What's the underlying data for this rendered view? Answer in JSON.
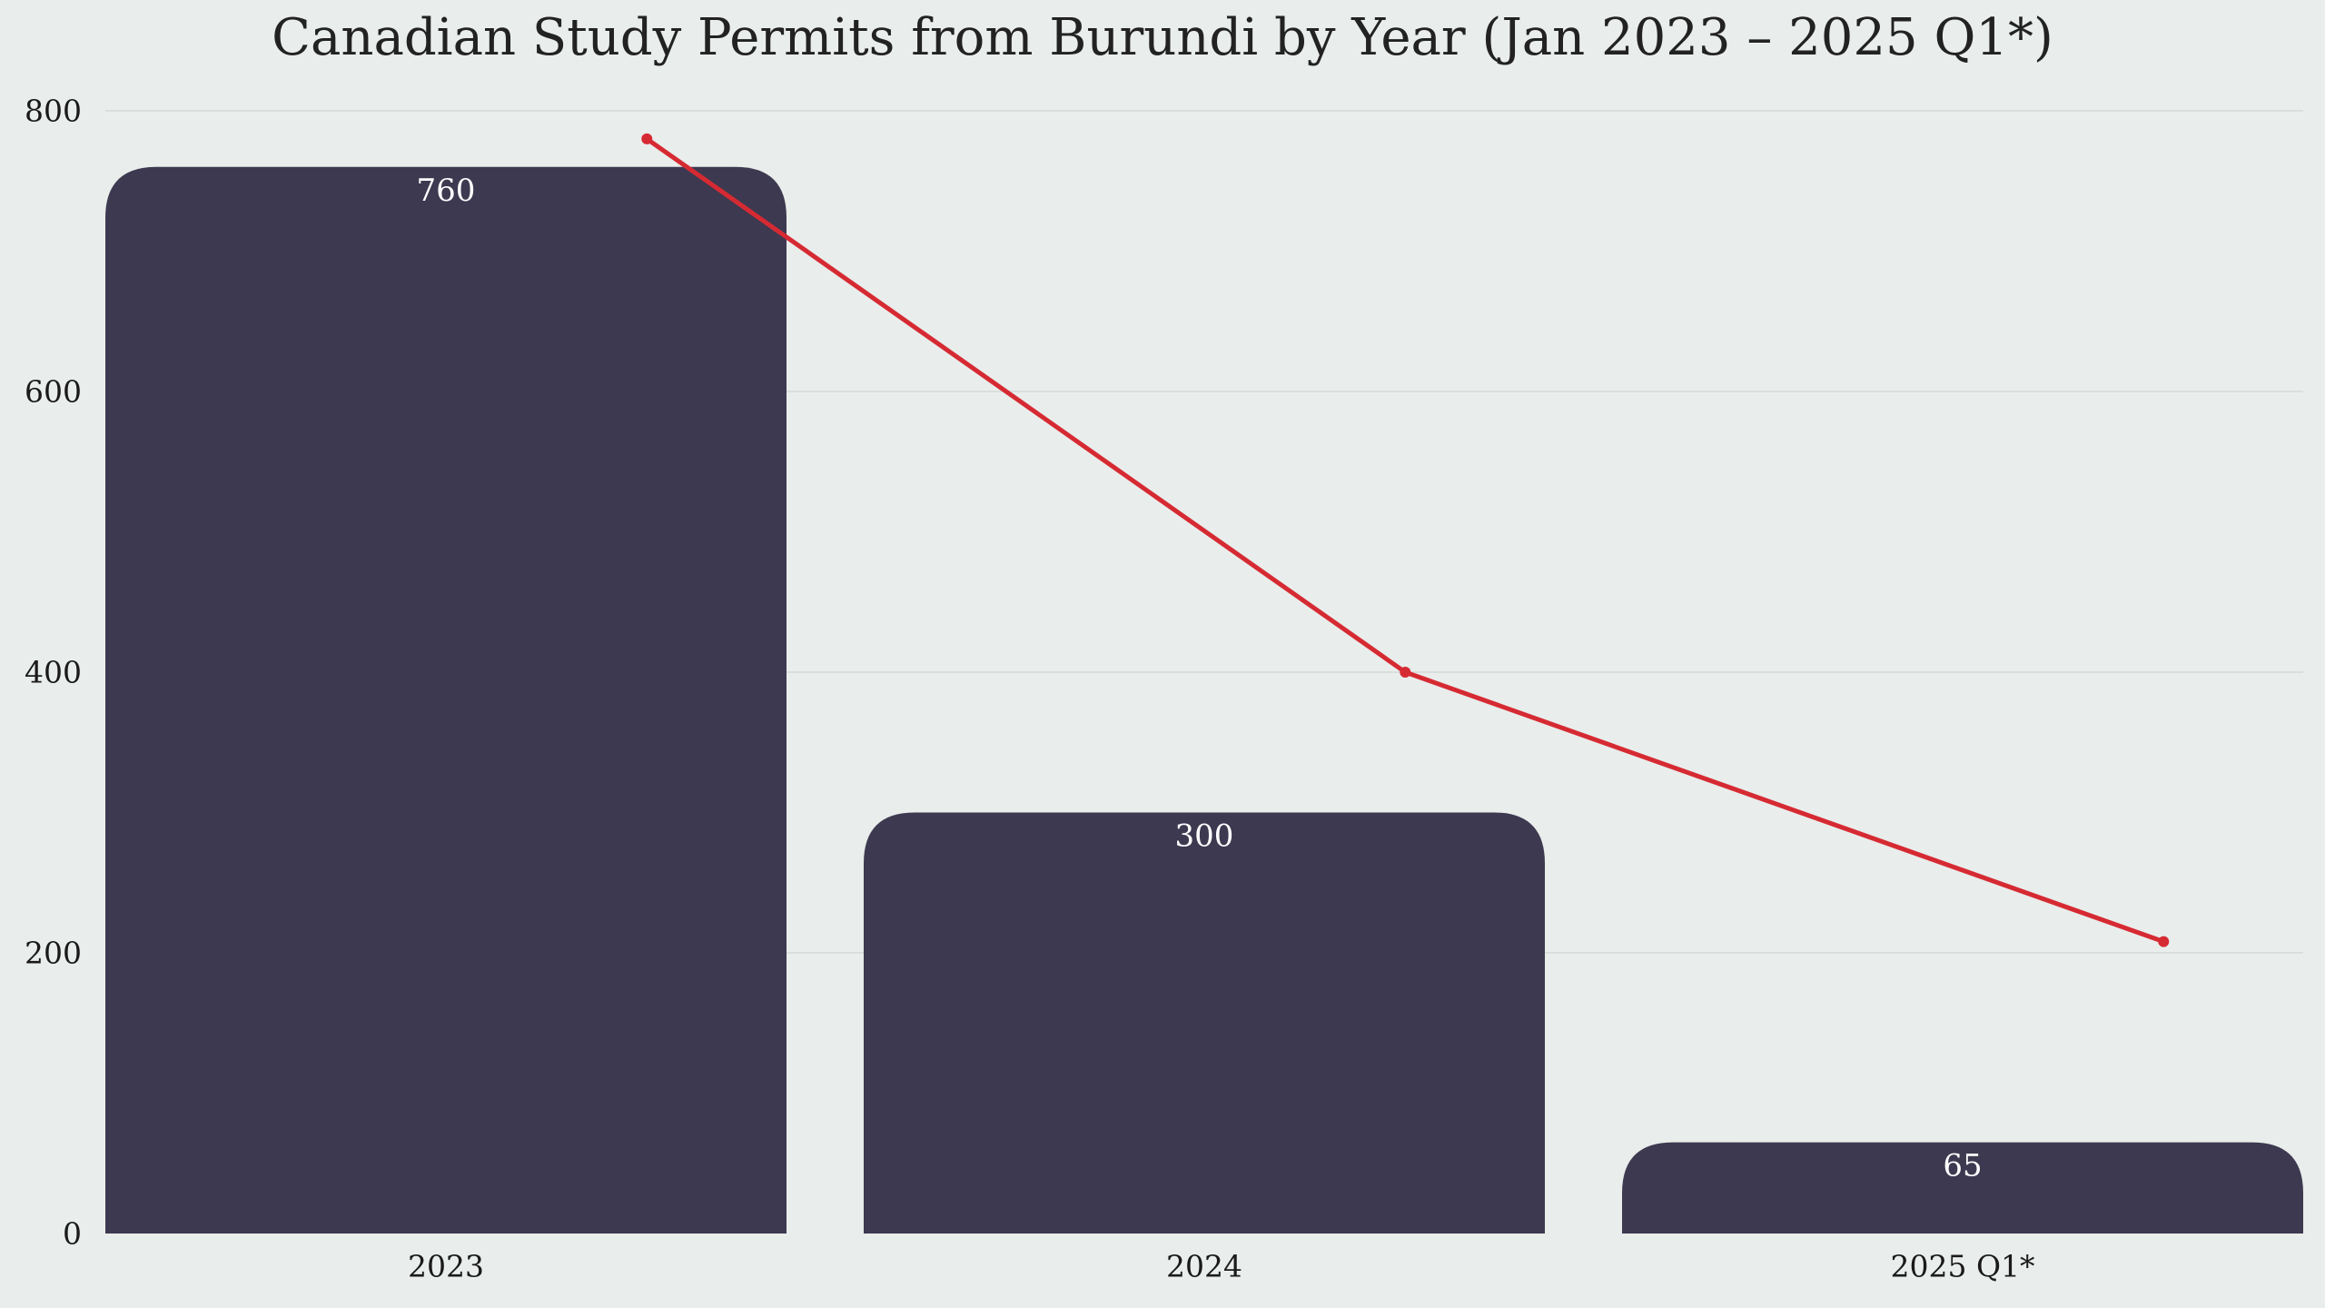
{
  "chart_data": {
    "type": "bar",
    "title": "Canadian Study Permits from Burundi by Year (Jan 2023 – 2025 Q1*)",
    "xlabel": "",
    "ylabel": "",
    "categories": [
      "2023",
      "2024",
      "2025 Q1*"
    ],
    "values": [
      760,
      300,
      65
    ],
    "data_labels": [
      "760",
      "300",
      "65"
    ],
    "trend_line": [
      780,
      400,
      208
    ],
    "ylim": [
      0,
      800
    ],
    "yticks": [
      0,
      200,
      400,
      600,
      800
    ],
    "ytick_labels": [
      "0",
      "200",
      "400",
      "600",
      "800"
    ],
    "grid": true,
    "legend": "none",
    "colors": {
      "bar": "#3d3950",
      "line": "#d62a33",
      "background": "#e9edeb",
      "grid": "#d6dad8"
    }
  }
}
